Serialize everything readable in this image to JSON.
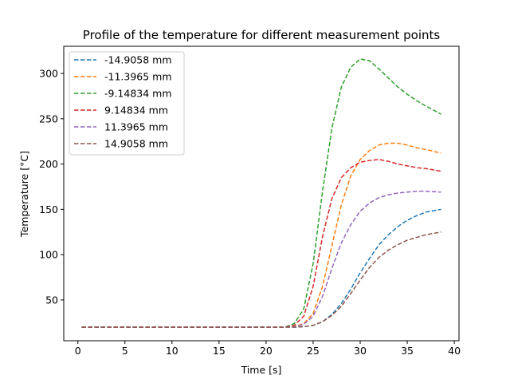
{
  "chart_data": {
    "type": "line",
    "title": "Profile of the temperature for different measurement points",
    "xlabel": "Time [s]",
    "ylabel": "Temperature [°C]",
    "xlim": [
      -1.5,
      40.5
    ],
    "ylim": [
      5,
      330
    ],
    "x_ticks": [
      0,
      5,
      10,
      15,
      20,
      25,
      30,
      35,
      40
    ],
    "y_ticks": [
      50,
      100,
      150,
      200,
      250,
      300
    ],
    "grid": false,
    "legend_position": "top-left",
    "line_style": "dashed",
    "series": [
      {
        "name": "-14.9058 mm",
        "color": "#1f77b4",
        "x": [
          0.4,
          5,
          10,
          15,
          20,
          22,
          23,
          24,
          25,
          26,
          27,
          28,
          29,
          30,
          31,
          32,
          33,
          34,
          35,
          36,
          37,
          38.6
        ],
        "y": [
          20,
          20,
          20,
          20,
          20,
          20,
          20,
          20.5,
          22,
          26,
          34,
          46,
          62,
          80,
          96,
          111,
          122,
          131,
          138,
          143,
          147,
          150
        ]
      },
      {
        "name": "-11.3965 mm",
        "color": "#ff7f0e",
        "x": [
          0.4,
          5,
          10,
          15,
          20,
          22,
          23,
          24,
          25,
          26,
          27,
          28,
          29,
          30,
          31,
          32,
          33,
          34,
          35,
          36,
          37,
          38.6
        ],
        "y": [
          20,
          20,
          20,
          20,
          20,
          20,
          20.5,
          24,
          35,
          65,
          110,
          155,
          187,
          205,
          215,
          221,
          223,
          223,
          221,
          218,
          216,
          212
        ]
      },
      {
        "name": "-9.14834 mm",
        "color": "#2ca02c",
        "x": [
          0.4,
          5,
          10,
          15,
          20,
          22,
          23,
          24,
          25,
          26,
          27,
          28,
          29,
          30,
          31,
          32,
          33,
          34,
          35,
          36,
          37,
          38.6
        ],
        "y": [
          20,
          20,
          20,
          20,
          20,
          20,
          24,
          40,
          90,
          170,
          240,
          285,
          307,
          316,
          314,
          305,
          295,
          285,
          277,
          270,
          264,
          255
        ]
      },
      {
        "name": "9.14834 mm",
        "color": "#d62728",
        "x": [
          0.4,
          5,
          10,
          15,
          20,
          22,
          23,
          24,
          25,
          26,
          27,
          28,
          29,
          30,
          31,
          32,
          33,
          34,
          35,
          36,
          37,
          38.6
        ],
        "y": [
          20,
          20,
          20,
          20,
          20,
          20,
          22,
          32,
          65,
          120,
          162,
          185,
          196,
          202,
          204,
          205,
          203,
          200,
          198,
          196,
          195,
          192
        ]
      },
      {
        "name": "11.3965 mm",
        "color": "#9467bd",
        "x": [
          0.4,
          5,
          10,
          15,
          20,
          22,
          23,
          24,
          25,
          26,
          27,
          28,
          29,
          30,
          31,
          32,
          33,
          34,
          35,
          36,
          37,
          38.6
        ],
        "y": [
          20,
          20,
          20,
          20,
          20,
          20,
          20.5,
          23,
          32,
          54,
          85,
          113,
          133,
          148,
          157,
          163,
          166,
          168,
          169,
          170,
          170,
          169
        ]
      },
      {
        "name": "14.9058 mm",
        "color": "#8c564b",
        "x": [
          0.4,
          5,
          10,
          15,
          20,
          22,
          23,
          24,
          25,
          26,
          27,
          28,
          29,
          30,
          31,
          32,
          33,
          34,
          35,
          36,
          37,
          38.6
        ],
        "y": [
          20,
          20,
          20,
          20,
          20,
          20,
          20,
          20.5,
          22,
          26,
          33,
          43,
          57,
          72,
          86,
          97,
          105,
          111,
          116,
          119,
          122,
          125
        ]
      }
    ]
  }
}
